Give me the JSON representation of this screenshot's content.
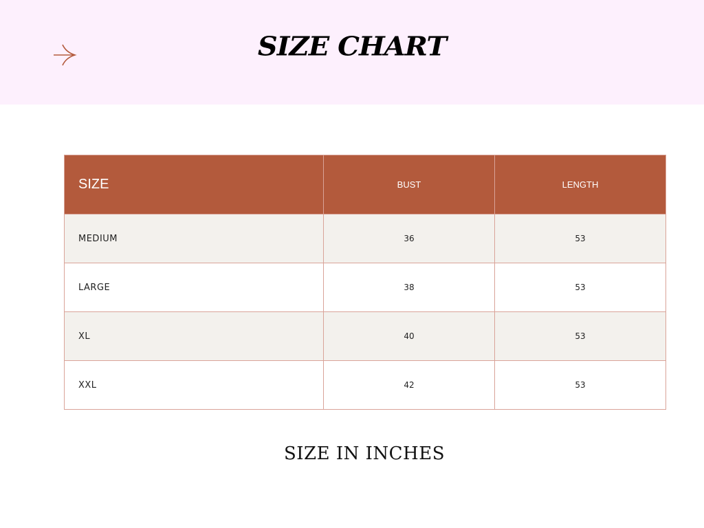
{
  "header": {
    "title": "SIZE CHART",
    "icon": "arrow-right-icon",
    "background": "#fdf0fd",
    "accent": "#b35a3c"
  },
  "table": {
    "columns": [
      "SIZE",
      "BUST",
      "LENGTH"
    ],
    "rows": [
      [
        "MEDIUM",
        "36",
        "53"
      ],
      [
        "LARGE",
        "38",
        "53"
      ],
      [
        "XL",
        "40",
        "53"
      ],
      [
        "XXL",
        "42",
        "53"
      ]
    ]
  },
  "footer": {
    "note": "SIZE IN INCHES"
  }
}
